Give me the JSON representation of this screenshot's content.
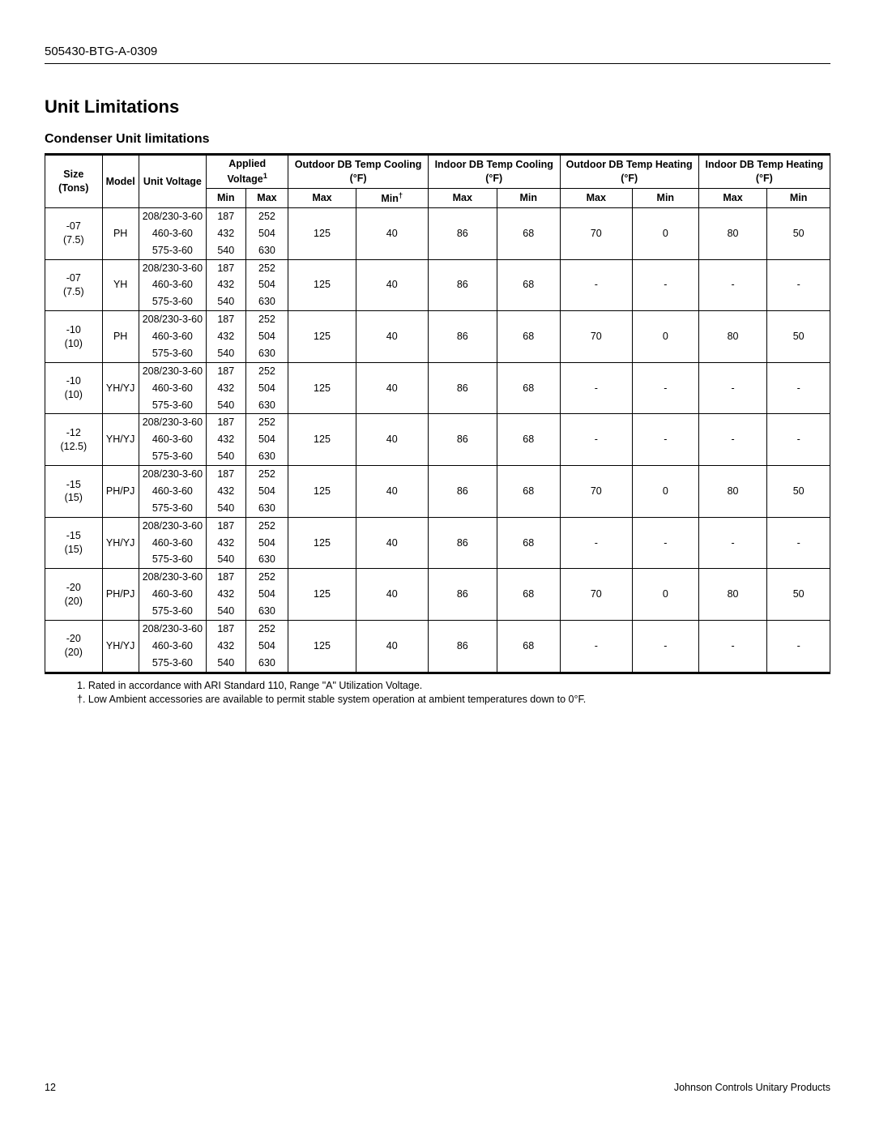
{
  "doc_number": "505430-BTG-A-0309",
  "title": "Unit Limitations",
  "subtitle": "Condenser Unit limitations",
  "headers": {
    "size": "Size (Tons)",
    "model": "Model",
    "unit_voltage": "Unit Voltage",
    "applied_voltage": "Applied Voltage",
    "applied_voltage_sup": "1",
    "odb_cool": "Outdoor DB Temp Cooling (°F)",
    "idb_cool": "Indoor DB Temp Cooling (°F)",
    "odb_heat": "Outdoor DB Temp Heating (°F)",
    "idb_heat": "Indoor DB Temp Heating (°F)",
    "min": "Min",
    "max": "Max",
    "min_dagger": "Min",
    "dagger": "†"
  },
  "voltages": [
    "208/230-3-60",
    "460-3-60",
    "575-3-60"
  ],
  "applied": [
    {
      "min": "187",
      "max": "252"
    },
    {
      "min": "432",
      "max": "504"
    },
    {
      "min": "540",
      "max": "630"
    }
  ],
  "rows": [
    {
      "size_top": "-07",
      "size_bot": "(7.5)",
      "model": "PH",
      "odb_cool_max": "125",
      "odb_cool_min": "40",
      "idb_cool_max": "86",
      "idb_cool_min": "68",
      "odb_heat_max": "70",
      "odb_heat_min": "0",
      "idb_heat_max": "80",
      "idb_heat_min": "50"
    },
    {
      "size_top": "-07",
      "size_bot": "(7.5)",
      "model": "YH",
      "odb_cool_max": "125",
      "odb_cool_min": "40",
      "idb_cool_max": "86",
      "idb_cool_min": "68",
      "odb_heat_max": "-",
      "odb_heat_min": "-",
      "idb_heat_max": "-",
      "idb_heat_min": "-"
    },
    {
      "size_top": "-10",
      "size_bot": "(10)",
      "model": "PH",
      "odb_cool_max": "125",
      "odb_cool_min": "40",
      "idb_cool_max": "86",
      "idb_cool_min": "68",
      "odb_heat_max": "70",
      "odb_heat_min": "0",
      "idb_heat_max": "80",
      "idb_heat_min": "50"
    },
    {
      "size_top": "-10",
      "size_bot": "(10)",
      "model": "YH/YJ",
      "odb_cool_max": "125",
      "odb_cool_min": "40",
      "idb_cool_max": "86",
      "idb_cool_min": "68",
      "odb_heat_max": "-",
      "odb_heat_min": "-",
      "idb_heat_max": "-",
      "idb_heat_min": "-"
    },
    {
      "size_top": "-12",
      "size_bot": "(12.5)",
      "model": "YH/YJ",
      "odb_cool_max": "125",
      "odb_cool_min": "40",
      "idb_cool_max": "86",
      "idb_cool_min": "68",
      "odb_heat_max": "-",
      "odb_heat_min": "-",
      "idb_heat_max": "-",
      "idb_heat_min": "-"
    },
    {
      "size_top": "-15",
      "size_bot": "(15)",
      "model": "PH/PJ",
      "odb_cool_max": "125",
      "odb_cool_min": "40",
      "idb_cool_max": "86",
      "idb_cool_min": "68",
      "odb_heat_max": "70",
      "odb_heat_min": "0",
      "idb_heat_max": "80",
      "idb_heat_min": "50"
    },
    {
      "size_top": "-15",
      "size_bot": "(15)",
      "model": "YH/YJ",
      "odb_cool_max": "125",
      "odb_cool_min": "40",
      "idb_cool_max": "86",
      "idb_cool_min": "68",
      "odb_heat_max": "-",
      "odb_heat_min": "-",
      "idb_heat_max": "-",
      "idb_heat_min": "-"
    },
    {
      "size_top": "-20",
      "size_bot": "(20)",
      "model": "PH/PJ",
      "odb_cool_max": "125",
      "odb_cool_min": "40",
      "idb_cool_max": "86",
      "idb_cool_min": "68",
      "odb_heat_max": "70",
      "odb_heat_min": "0",
      "idb_heat_max": "80",
      "idb_heat_min": "50"
    },
    {
      "size_top": "-20",
      "size_bot": "(20)",
      "model": "YH/YJ",
      "odb_cool_max": "125",
      "odb_cool_min": "40",
      "idb_cool_max": "86",
      "idb_cool_min": "68",
      "odb_heat_max": "-",
      "odb_heat_min": "-",
      "idb_heat_max": "-",
      "idb_heat_min": "-"
    }
  ],
  "notes": {
    "n1": "1. Rated in accordance with ARI Standard 110, Range \"A\" Utilization Voltage.",
    "n2": "†. Low Ambient accessories are available to permit stable system operation at ambient temperatures down to 0°F."
  },
  "footer": {
    "page": "12",
    "brand": "Johnson Controls Unitary Products"
  }
}
